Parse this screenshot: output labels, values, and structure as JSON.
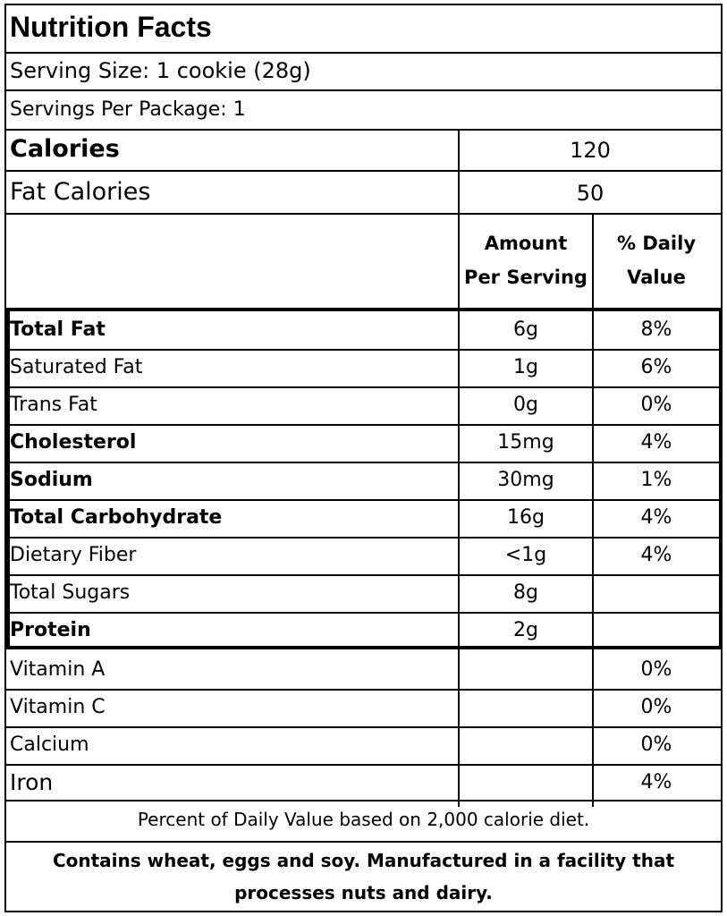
{
  "title": "Nutrition Facts",
  "serving_size": "Serving Size: 1 cookie (28g)",
  "servings_per_package": "Servings Per Package: 1",
  "calories": {
    "label": "Calories",
    "value": "120"
  },
  "fat_calories": {
    "label": "Fat Calories",
    "value": "50"
  },
  "headers": {
    "amount_line1": "Amount",
    "amount_line2": "Per Serving",
    "dv_line1": "% Daily",
    "dv_line2": "Value"
  },
  "nutrients": [
    {
      "name": "Total Fat",
      "amount": "6g",
      "dv": "8%",
      "bold": true
    },
    {
      "name": "Saturated Fat",
      "amount": "1g",
      "dv": "6%",
      "bold": false
    },
    {
      "name": "Trans Fat",
      "amount": "0g",
      "dv": "0%",
      "bold": false
    },
    {
      "name": "Cholesterol",
      "amount": "15mg",
      "dv": "4%",
      "bold": true
    },
    {
      "name": "Sodium",
      "amount": "30mg",
      "dv": "1%",
      "bold": true
    },
    {
      "name": "Total Carbohydrate",
      "amount": "16g",
      "dv": "4%",
      "bold": true
    },
    {
      "name": "Dietary Fiber",
      "amount": "<1g",
      "dv": "4%",
      "bold": false
    },
    {
      "name": "Total Sugars",
      "amount": "8g",
      "dv": "",
      "bold": false
    },
    {
      "name": "Protein",
      "amount": "2g",
      "dv": "",
      "bold": true
    }
  ],
  "vitamins": [
    {
      "name": "Vitamin A",
      "amount": "",
      "dv": "0%"
    },
    {
      "name": "Vitamin C",
      "amount": "",
      "dv": "0%"
    },
    {
      "name": "Calcium",
      "amount": "",
      "dv": "0%"
    },
    {
      "name": "Iron",
      "amount": "",
      "dv": "4%"
    }
  ],
  "footnote": "Percent of Daily Value based on 2,000 calorie diet.",
  "allergen_line1": "Contains wheat, eggs and soy.  Manufactured in a facility that",
  "allergen_line2": "processes nuts and dairy."
}
